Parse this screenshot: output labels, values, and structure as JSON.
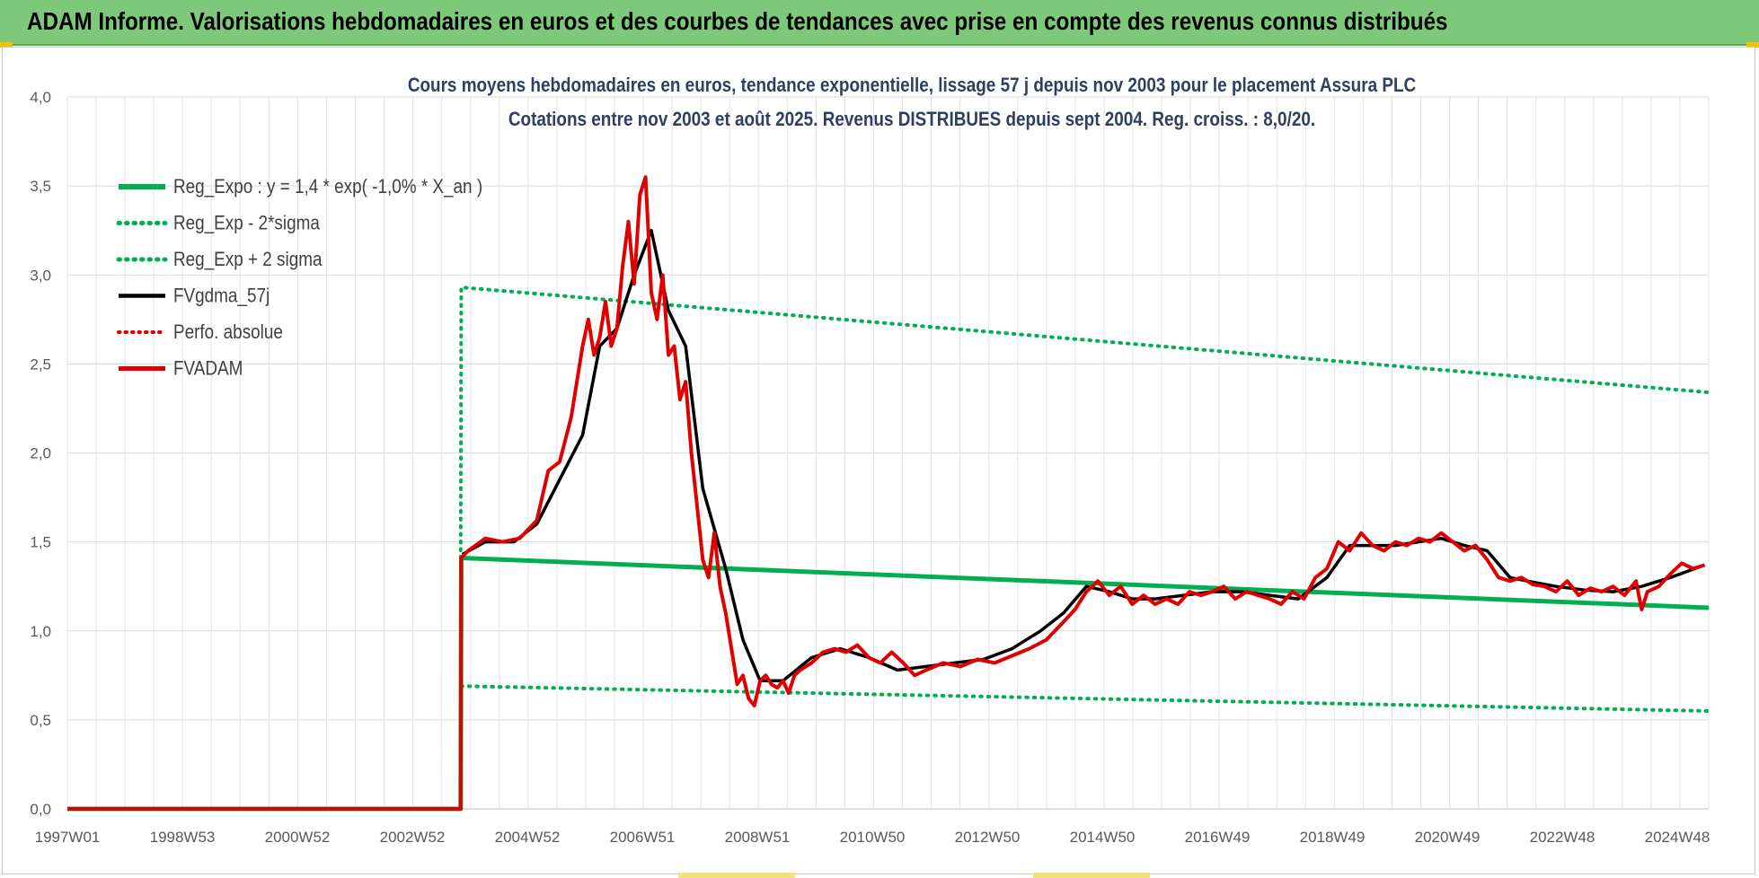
{
  "header": {
    "title": "ADAM Informe. Valorisations hebdomadaires en euros et des courbes de tendances avec prise en compte des revenus connus distribués"
  },
  "colors": {
    "header_bg": "#7ec87a",
    "reg_expo": "#00b050",
    "sigma": "#00b050",
    "fvgdma": "#000000",
    "perfo": "#e00000",
    "fvadam": "#e00000",
    "title_text": "#2f3f5f"
  },
  "chart_data": {
    "type": "line",
    "title_line1": "Cours moyens hebdomadaires en euros, tendance exponentielle, lissage 57 j depuis nov 2003  pour le placement Assura PLC",
    "title_line2": "Cotations entre nov 2003 et août 2025. Revenus DISTRIBUES depuis sept 2004.  Reg. croiss. : 8,0/20.",
    "x_range": [
      1997.0,
      2025.67
    ],
    "x_tick_labels": [
      "1997W01",
      "1998W53",
      "2000W52",
      "2002W52",
      "2004W52",
      "2006W51",
      "2008W51",
      "2010W50",
      "2012W50",
      "2014W50",
      "2016W49",
      "2018W49",
      "2020W49",
      "2022W48",
      "2024W48"
    ],
    "ylim": [
      0,
      4
    ],
    "y_tick_labels": [
      "0,0",
      "0,5",
      "1,0",
      "1,5",
      "2,0",
      "2,5",
      "3,0",
      "3,5",
      "4,0"
    ],
    "grid": true,
    "legend_position": "top-left",
    "series": [
      {
        "name": "Reg_Expo : y = 1,4 * exp( -1,0% *  X_an )",
        "style": "solid-green",
        "x": [
          1997.0,
          2003.87,
          2003.88,
          2025.67
        ],
        "y": [
          0,
          0,
          1.41,
          1.13
        ]
      },
      {
        "name": "Reg_Exp - 2*sigma",
        "style": "dotted-green",
        "x": [
          2003.88,
          2025.67
        ],
        "y": [
          0.69,
          0.55
        ]
      },
      {
        "name": "Reg_Exp + 2 sigma",
        "style": "dotted-green",
        "x": [
          2003.87,
          2003.88,
          2025.67
        ],
        "y": [
          1.41,
          2.93,
          2.34
        ]
      },
      {
        "name": "FVgdma_57j",
        "style": "solid-black",
        "x": [
          2003.9,
          2004.3,
          2004.8,
          2005.2,
          2005.6,
          2006.0,
          2006.3,
          2006.6,
          2006.9,
          2007.2,
          2007.5,
          2007.8,
          2008.1,
          2008.5,
          2008.8,
          2009.1,
          2009.5,
          2010.0,
          2010.5,
          2011.0,
          2011.5,
          2012.0,
          2012.5,
          2013.0,
          2013.5,
          2014.0,
          2014.4,
          2014.8,
          2015.2,
          2015.6,
          2016.0,
          2016.5,
          2017.0,
          2017.5,
          2018.0,
          2018.5,
          2019.0,
          2019.4,
          2019.8,
          2020.2,
          2020.6,
          2021.0,
          2021.4,
          2021.8,
          2022.2,
          2022.5,
          2023.0,
          2023.5,
          2024.0,
          2024.5,
          2025.0,
          2025.6
        ],
        "y": [
          1.43,
          1.5,
          1.5,
          1.6,
          1.85,
          2.1,
          2.6,
          2.7,
          3.0,
          3.25,
          2.8,
          2.6,
          1.8,
          1.35,
          0.95,
          0.72,
          0.72,
          0.85,
          0.9,
          0.85,
          0.78,
          0.8,
          0.82,
          0.84,
          0.9,
          1.0,
          1.1,
          1.25,
          1.22,
          1.18,
          1.18,
          1.2,
          1.22,
          1.22,
          1.2,
          1.18,
          1.3,
          1.48,
          1.48,
          1.48,
          1.5,
          1.52,
          1.48,
          1.45,
          1.3,
          1.28,
          1.25,
          1.23,
          1.22,
          1.25,
          1.3,
          1.37
        ]
      },
      {
        "name": "Perfo. absolue",
        "style": "dotted-red",
        "x": [],
        "y": []
      },
      {
        "name": "FVADAM",
        "style": "solid-red",
        "x": [
          1997.0,
          2003.87,
          2003.88,
          2004.0,
          2004.3,
          2004.6,
          2004.9,
          2005.2,
          2005.4,
          2005.6,
          2005.8,
          2006.0,
          2006.1,
          2006.2,
          2006.3,
          2006.4,
          2006.5,
          2006.6,
          2006.7,
          2006.8,
          2006.9,
          2007.0,
          2007.1,
          2007.2,
          2007.3,
          2007.4,
          2007.5,
          2007.6,
          2007.7,
          2007.8,
          2007.9,
          2008.0,
          2008.1,
          2008.2,
          2008.3,
          2008.4,
          2008.5,
          2008.6,
          2008.7,
          2008.8,
          2008.9,
          2009.0,
          2009.1,
          2009.2,
          2009.3,
          2009.4,
          2009.5,
          2009.6,
          2009.7,
          2009.8,
          2010.0,
          2010.2,
          2010.4,
          2010.6,
          2010.8,
          2011.0,
          2011.2,
          2011.4,
          2011.6,
          2011.8,
          2012.0,
          2012.3,
          2012.6,
          2012.9,
          2013.2,
          2013.5,
          2013.8,
          2014.1,
          2014.4,
          2014.6,
          2014.8,
          2015.0,
          2015.2,
          2015.4,
          2015.6,
          2015.8,
          2016.0,
          2016.2,
          2016.4,
          2016.6,
          2016.8,
          2017.0,
          2017.2,
          2017.4,
          2017.6,
          2017.8,
          2018.0,
          2018.2,
          2018.4,
          2018.6,
          2018.8,
          2019.0,
          2019.2,
          2019.4,
          2019.6,
          2019.8,
          2020.0,
          2020.2,
          2020.4,
          2020.6,
          2020.8,
          2021.0,
          2021.2,
          2021.4,
          2021.6,
          2021.8,
          2022.0,
          2022.2,
          2022.4,
          2022.6,
          2022.8,
          2023.0,
          2023.2,
          2023.4,
          2023.6,
          2023.8,
          2024.0,
          2024.2,
          2024.4,
          2024.5,
          2024.6,
          2024.8,
          2025.0,
          2025.2,
          2025.4,
          2025.6
        ],
        "y": [
          0,
          0,
          1.41,
          1.45,
          1.52,
          1.5,
          1.52,
          1.62,
          1.9,
          1.95,
          2.2,
          2.6,
          2.75,
          2.55,
          2.65,
          2.85,
          2.6,
          2.7,
          3.05,
          3.3,
          2.95,
          3.45,
          3.55,
          2.9,
          2.75,
          3.0,
          2.55,
          2.6,
          2.3,
          2.4,
          2.0,
          1.7,
          1.4,
          1.3,
          1.55,
          1.25,
          1.1,
          0.9,
          0.7,
          0.75,
          0.62,
          0.58,
          0.72,
          0.75,
          0.7,
          0.68,
          0.72,
          0.65,
          0.75,
          0.78,
          0.82,
          0.88,
          0.9,
          0.88,
          0.92,
          0.85,
          0.82,
          0.88,
          0.82,
          0.75,
          0.78,
          0.82,
          0.8,
          0.84,
          0.82,
          0.86,
          0.9,
          0.95,
          1.05,
          1.12,
          1.22,
          1.28,
          1.2,
          1.25,
          1.15,
          1.2,
          1.15,
          1.18,
          1.15,
          1.22,
          1.2,
          1.22,
          1.25,
          1.18,
          1.22,
          1.2,
          1.18,
          1.15,
          1.22,
          1.18,
          1.3,
          1.35,
          1.5,
          1.45,
          1.55,
          1.48,
          1.45,
          1.5,
          1.48,
          1.52,
          1.5,
          1.55,
          1.5,
          1.45,
          1.48,
          1.4,
          1.3,
          1.28,
          1.3,
          1.26,
          1.25,
          1.22,
          1.28,
          1.2,
          1.24,
          1.22,
          1.25,
          1.2,
          1.28,
          1.12,
          1.22,
          1.25,
          1.32,
          1.38,
          1.35,
          1.37
        ]
      }
    ]
  }
}
